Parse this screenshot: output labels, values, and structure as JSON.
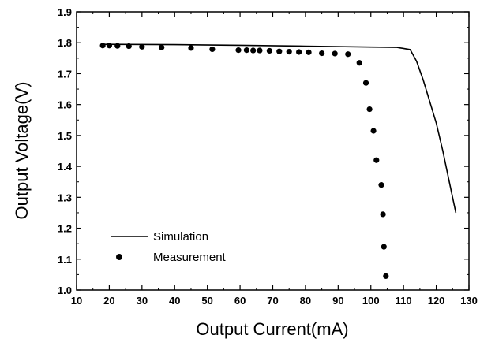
{
  "chart_data": {
    "type": "scatter",
    "title": "",
    "xlabel": "Output Current(mA)",
    "ylabel": "Output Voltage(V)",
    "xlim": [
      10,
      130
    ],
    "ylim": [
      1.0,
      1.9
    ],
    "xticks": [
      "10",
      "20",
      "30",
      "40",
      "50",
      "60",
      "70",
      "80",
      "90",
      "100",
      "110",
      "120",
      "130"
    ],
    "yticks": [
      "1.0",
      "1.1",
      "1.2",
      "1.3",
      "1.4",
      "1.5",
      "1.6",
      "1.7",
      "1.8",
      "1.9"
    ],
    "grid": false,
    "legend_position": "bottom-left",
    "series": [
      {
        "name": "Simulation",
        "style": "line",
        "color": "#000000",
        "x": [
          18,
          40,
          60,
          80,
          100,
          108,
          112,
          114,
          116,
          118,
          120,
          122,
          124,
          126
        ],
        "y": [
          1.795,
          1.794,
          1.792,
          1.789,
          1.786,
          1.785,
          1.778,
          1.74,
          1.68,
          1.61,
          1.54,
          1.45,
          1.35,
          1.25
        ]
      },
      {
        "name": "Measurement",
        "style": "marker",
        "color": "#000000",
        "x": [
          18,
          20,
          22.5,
          26,
          30,
          36,
          45,
          51.5,
          59.5,
          62,
          64,
          66,
          69,
          72,
          75,
          78,
          81,
          85,
          89,
          93,
          96.5,
          98.5,
          99.6,
          100.8,
          101.7,
          103.2,
          103.7,
          104,
          104.6
        ],
        "y": [
          1.791,
          1.791,
          1.79,
          1.789,
          1.787,
          1.785,
          1.783,
          1.779,
          1.776,
          1.776,
          1.775,
          1.775,
          1.774,
          1.772,
          1.771,
          1.77,
          1.769,
          1.766,
          1.765,
          1.763,
          1.735,
          1.67,
          1.585,
          1.515,
          1.42,
          1.34,
          1.245,
          1.14,
          1.045
        ]
      }
    ]
  }
}
